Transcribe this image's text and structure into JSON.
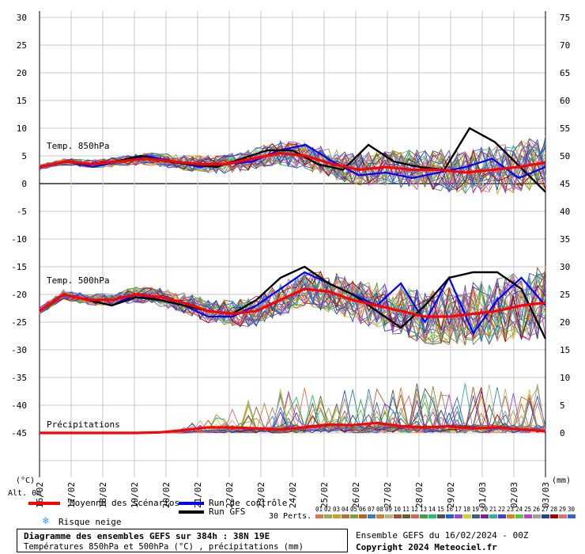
{
  "chart_data": {
    "type": "line",
    "title": "Diagramme des ensembles GEFS sur 384h : 38N 19E",
    "subtitle": "Températures 850hPa et 500hPa (°C) , précipitations (mm)",
    "left_axis_unit": "(°C)",
    "right_axis_unit": "(mm)",
    "alt_label": "Alt. 0m",
    "left_ticks": [
      30,
      25,
      20,
      15,
      10,
      5,
      0,
      -5,
      -10,
      -15,
      -20,
      -25,
      -30,
      -35,
      -40,
      -45
    ],
    "right_ticks": [
      75,
      70,
      65,
      60,
      55,
      50,
      45,
      40,
      35,
      30,
      25,
      20,
      15,
      10,
      5,
      0
    ],
    "x_labels": [
      "16/02",
      "17/02",
      "18/02",
      "19/02",
      "20/02",
      "21/02",
      "22/02",
      "23/02",
      "24/02",
      "25/02",
      "26/02",
      "27/02",
      "28/02",
      "29/02",
      "01/03",
      "02/03",
      "03/03"
    ],
    "section_labels": {
      "t850": "Temp. 850hPa",
      "t500": "Temp. 500hPa",
      "precip": "Précipitations"
    },
    "mean_t850": [
      3,
      4,
      3.5,
      4,
      4.5,
      4,
      3.5,
      3.5,
      4.5,
      5.5,
      5,
      3.5,
      2.5,
      3,
      2.5,
      2.5,
      2,
      2.5,
      3,
      3.8
    ],
    "mean_t500": [
      -23,
      -20,
      -21,
      -21,
      -20,
      -20.5,
      -21.5,
      -23,
      -23.5,
      -23,
      -21,
      -19,
      -19.5,
      -21,
      -22,
      -23,
      -24,
      -24,
      -23.5,
      -23,
      -22,
      -21.5
    ],
    "mean_precip": [
      0,
      0,
      0,
      0,
      0,
      0.1,
      0.5,
      1,
      1,
      0.8,
      0.6,
      1,
      1.5,
      1.4,
      1.8,
      1.2,
      1,
      1.2,
      0.8,
      1,
      0.6,
      0.3
    ],
    "control_t850": [
      3,
      4,
      3,
      4,
      5,
      4,
      3,
      3.5,
      4,
      6,
      7,
      4,
      1.5,
      2,
      1,
      2,
      3,
      4.5,
      1,
      3
    ],
    "control_t500": [
      -23,
      -20,
      -21,
      -22,
      -20,
      -21,
      -22,
      -24,
      -24,
      -22,
      -19,
      -16,
      -18,
      -20,
      -22,
      -18,
      -25,
      -17,
      -27,
      -21,
      -17,
      -22
    ],
    "gfs_t850": [
      3,
      4,
      3.5,
      4,
      5,
      4,
      3.5,
      3,
      4.5,
      6,
      6,
      3.5,
      2.5,
      7,
      4,
      3,
      2.5,
      10,
      7.5,
      3,
      -1.5
    ],
    "gfs_t500": [
      -23,
      -20,
      -21,
      -22,
      -20.5,
      -21,
      -22,
      -23,
      -23.5,
      -21,
      -17,
      -15,
      -18,
      -20,
      -23,
      -26,
      -22,
      -17,
      -16,
      -16,
      -19,
      -28
    ],
    "legend": {
      "mean": "Moyenne des scénarios",
      "control": "Run de contrôle",
      "gfs": "Run GFS",
      "snow": "Risque neige",
      "perts": "30 Perts."
    },
    "member_labels": [
      "01",
      "02",
      "03",
      "04",
      "05",
      "06",
      "07",
      "08",
      "09",
      "10",
      "11",
      "12",
      "13",
      "14",
      "15",
      "16",
      "17",
      "18",
      "19",
      "20",
      "21",
      "22",
      "23",
      "24",
      "25",
      "26",
      "27",
      "28",
      "29",
      "30"
    ],
    "member_colors": [
      "#e0744a",
      "#8fb050",
      "#d0a020",
      "#b07040",
      "#80a040",
      "#c06020",
      "#3080d0",
      "#d08030",
      "#c0b080",
      "#a05030",
      "#606030",
      "#e06060",
      "#40a040",
      "#20c060",
      "#505050",
      "#2060c0",
      "#a040e0",
      "#d0d030",
      "#406080",
      "#8020a0",
      "#30b0a0",
      "#4040e0",
      "#e08020",
      "#60c040",
      "#c040c0",
      "#a0a0a0",
      "#2040a0",
      "#a00000",
      "#e07070",
      "#3060e0"
    ],
    "colors": {
      "mean": "#ff0000",
      "control": "#0000ff",
      "gfs": "#000000",
      "grid": "#c8c8c8"
    }
  },
  "footer": {
    "ensemble": "Ensemble GEFS du 16/02/2024 - 00Z",
    "copyright": "Copyright 2024 Meteociel.fr"
  }
}
